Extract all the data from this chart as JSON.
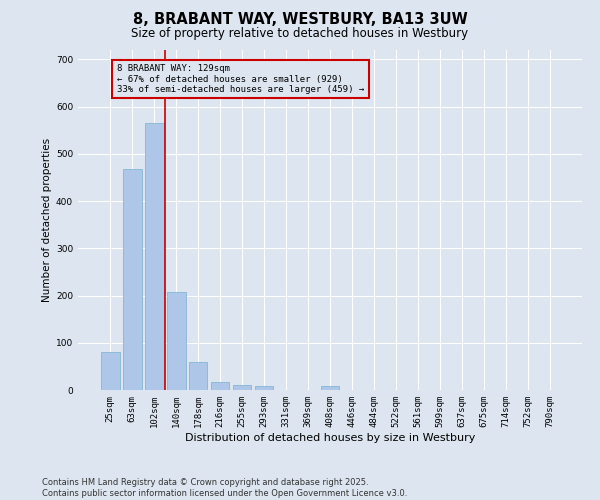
{
  "title": "8, BRABANT WAY, WESTBURY, BA13 3UW",
  "subtitle": "Size of property relative to detached houses in Westbury",
  "xlabel": "Distribution of detached houses by size in Westbury",
  "ylabel": "Number of detached properties",
  "categories": [
    "25sqm",
    "63sqm",
    "102sqm",
    "140sqm",
    "178sqm",
    "216sqm",
    "255sqm",
    "293sqm",
    "331sqm",
    "369sqm",
    "408sqm",
    "446sqm",
    "484sqm",
    "522sqm",
    "561sqm",
    "599sqm",
    "637sqm",
    "675sqm",
    "714sqm",
    "752sqm",
    "790sqm"
  ],
  "values": [
    80,
    467,
    565,
    208,
    60,
    16,
    10,
    8,
    0,
    0,
    8,
    0,
    0,
    0,
    0,
    0,
    0,
    0,
    0,
    0,
    0
  ],
  "bar_color": "#aec6e8",
  "bar_edgecolor": "#7aafd4",
  "bg_color": "#dde6f0",
  "grid_color": "#ffffff",
  "vline_color": "#cc0000",
  "vline_pos": 2.5,
  "annotation_text": "8 BRABANT WAY: 129sqm\n← 67% of detached houses are smaller (929)\n33% of semi-detached houses are larger (459) →",
  "annotation_box_edgecolor": "#cc0000",
  "ylim": [
    0,
    720
  ],
  "yticks": [
    0,
    100,
    200,
    300,
    400,
    500,
    600,
    700
  ],
  "footnote": "Contains HM Land Registry data © Crown copyright and database right 2025.\nContains public sector information licensed under the Open Government Licence v3.0.",
  "title_fontsize": 10.5,
  "subtitle_fontsize": 8.5,
  "xlabel_fontsize": 8,
  "ylabel_fontsize": 7.5,
  "tick_fontsize": 6.5,
  "ann_fontsize": 6.5,
  "footnote_fontsize": 6
}
